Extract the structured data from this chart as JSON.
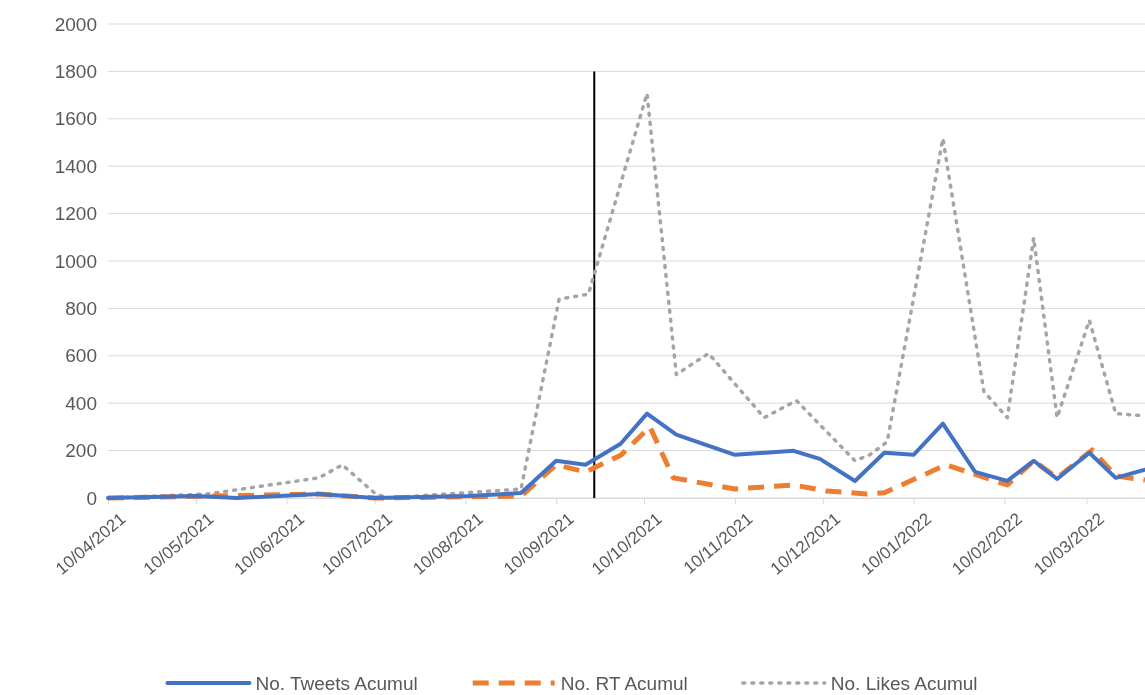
{
  "chart_data": {
    "type": "line",
    "xlim": [
      "2021-04-10",
      "2022-03-30"
    ],
    "ylim": [
      0,
      2000
    ],
    "xticks": [
      {
        "value": "2021-04-10",
        "label": "10/04/2021"
      },
      {
        "value": "2021-05-10",
        "label": "10/05/2021"
      },
      {
        "value": "2021-06-10",
        "label": "10/06/2021"
      },
      {
        "value": "2021-07-10",
        "label": "10/07/2021"
      },
      {
        "value": "2021-08-10",
        "label": "10/08/2021"
      },
      {
        "value": "2021-09-10",
        "label": "10/09/2021"
      },
      {
        "value": "2021-10-10",
        "label": "10/10/2021"
      },
      {
        "value": "2021-11-10",
        "label": "10/11/2021"
      },
      {
        "value": "2021-12-10",
        "label": "10/12/2021"
      },
      {
        "value": "2022-01-10",
        "label": "10/01/2022"
      },
      {
        "value": "2022-02-10",
        "label": "10/02/2022"
      },
      {
        "value": "2022-03-10",
        "label": "10/03/2022"
      }
    ],
    "yticks": [
      0,
      200,
      400,
      600,
      800,
      1000,
      1200,
      1400,
      1600,
      1800,
      2000
    ],
    "grid": "y",
    "legend": "bottom",
    "series": [
      {
        "name": "No. Tweets Acumul",
        "color": "#4472c4",
        "line_style": "solid",
        "x": [
          "2021-04-10",
          "2021-05-10",
          "2021-05-24",
          "2021-06-21",
          "2021-07-10",
          "2021-08-11",
          "2021-08-29",
          "2021-09-10",
          "2021-09-20",
          "2021-10-02",
          "2021-10-11",
          "2021-10-21",
          "2021-11-10",
          "2021-11-30",
          "2021-12-09",
          "2021-12-21",
          "2021-12-31",
          "2022-01-10",
          "2022-01-20",
          "2022-01-31",
          "2022-02-11",
          "2022-02-20",
          "2022-02-28",
          "2022-03-11",
          "2022-03-20",
          "2022-03-30"
        ],
        "values": [
          0,
          8,
          0,
          17,
          0,
          8,
          21,
          157,
          140,
          229,
          356,
          267,
          182,
          199,
          165,
          72,
          191,
          182,
          314,
          110,
          72,
          157,
          80,
          191,
          85,
          119
        ]
      },
      {
        "name": "No. RT Acumul",
        "color": "#ed7d31",
        "line_style": "dashed",
        "x": [
          "2021-04-10",
          "2021-05-16",
          "2021-06-21",
          "2021-07-10",
          "2021-08-29",
          "2021-09-10",
          "2021-09-20",
          "2021-10-02",
          "2021-10-12",
          "2021-10-20",
          "2021-11-10",
          "2021-11-30",
          "2021-12-11",
          "2021-12-25",
          "2021-12-31",
          "2022-01-21",
          "2022-02-11",
          "2022-02-20",
          "2022-02-28",
          "2022-03-12",
          "2022-03-20",
          "2022-03-30"
        ],
        "values": [
          0,
          8,
          17,
          0,
          8,
          140,
          110,
          180,
          300,
          85,
          38,
          55,
          30,
          17,
          22,
          140,
          55,
          157,
          85,
          203,
          93,
          76
        ]
      },
      {
        "name": "No. Likes Acumul",
        "color": "#a5a5a5",
        "line_style": "dotted",
        "x": [
          "2021-04-10",
          "2021-05-14",
          "2021-06-21",
          "2021-06-29",
          "2021-07-10",
          "2021-07-14",
          "2021-08-29",
          "2021-09-11",
          "2021-09-21",
          "2021-10-11",
          "2021-10-21",
          "2021-11-01",
          "2021-11-20",
          "2021-12-01",
          "2021-12-21",
          "2021-12-26",
          "2022-01-01",
          "2022-01-20",
          "2022-02-03",
          "2022-02-11",
          "2022-02-20",
          "2022-02-28",
          "2022-03-11",
          "2022-03-20",
          "2022-03-30"
        ],
        "values": [
          0,
          17,
          85,
          140,
          21,
          0,
          38,
          839,
          860,
          1707,
          521,
          610,
          339,
          411,
          157,
          182,
          237,
          1517,
          449,
          339,
          1098,
          339,
          750,
          356,
          347
        ]
      }
    ],
    "ref_lines": [
      {
        "axis": "x",
        "value": "2021-09-23",
        "color": "#000000"
      }
    ]
  }
}
